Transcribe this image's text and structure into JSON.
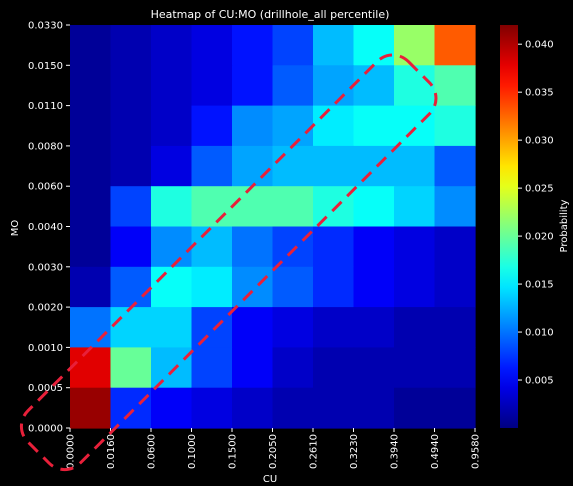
{
  "chart_data": {
    "type": "heatmap",
    "title": "Heatmap of CU:MO (drillhole_all percentile)",
    "xlabel": "CU",
    "ylabel": "MO",
    "x_categories": [
      "0.0000",
      "0.0160",
      "0.0600",
      "0.1000",
      "0.1500",
      "0.2050",
      "0.2610",
      "0.3230",
      "0.3940",
      "0.4940",
      "0.9580"
    ],
    "y_categories_top_to_bottom": [
      "0.0330",
      "0.0150",
      "0.0110",
      "0.0080",
      "0.0060",
      "0.0040",
      "0.0030",
      "0.0020",
      "0.0010",
      "0.0005",
      "0.0000"
    ],
    "values_top_to_bottom": [
      [
        0.001,
        0.002,
        0.003,
        0.004,
        0.006,
        0.008,
        0.013,
        0.016,
        0.022,
        0.033
      ],
      [
        0.001,
        0.002,
        0.003,
        0.004,
        0.006,
        0.009,
        0.012,
        0.013,
        0.017,
        0.019
      ],
      [
        0.001,
        0.002,
        0.003,
        0.006,
        0.011,
        0.012,
        0.015,
        0.016,
        0.016,
        0.017
      ],
      [
        0.001,
        0.002,
        0.004,
        0.009,
        0.012,
        0.013,
        0.013,
        0.013,
        0.013,
        0.009
      ],
      [
        0.001,
        0.008,
        0.017,
        0.019,
        0.019,
        0.019,
        0.017,
        0.016,
        0.014,
        0.011
      ],
      [
        0.001,
        0.005,
        0.011,
        0.013,
        0.01,
        0.008,
        0.007,
        0.005,
        0.004,
        0.003
      ],
      [
        0.002,
        0.009,
        0.016,
        0.015,
        0.011,
        0.009,
        0.007,
        0.005,
        0.004,
        0.003
      ],
      [
        0.01,
        0.014,
        0.014,
        0.008,
        0.005,
        0.004,
        0.003,
        0.003,
        0.002,
        0.002
      ],
      [
        0.038,
        0.02,
        0.013,
        0.008,
        0.005,
        0.003,
        0.002,
        0.002,
        0.002,
        0.002
      ],
      [
        0.041,
        0.007,
        0.005,
        0.004,
        0.003,
        0.002,
        0.002,
        0.002,
        0.001,
        0.001
      ]
    ],
    "colormap": "jet",
    "colorbar": {
      "label": "Probability",
      "range": [
        0.0,
        0.042
      ],
      "ticks": [
        "0.005",
        "0.010",
        "0.015",
        "0.020",
        "0.025",
        "0.030",
        "0.035",
        "0.040"
      ]
    },
    "annotation": {
      "shape": "dashed rounded diagonal outline",
      "color": "#e8203a"
    },
    "background": "#000000"
  }
}
